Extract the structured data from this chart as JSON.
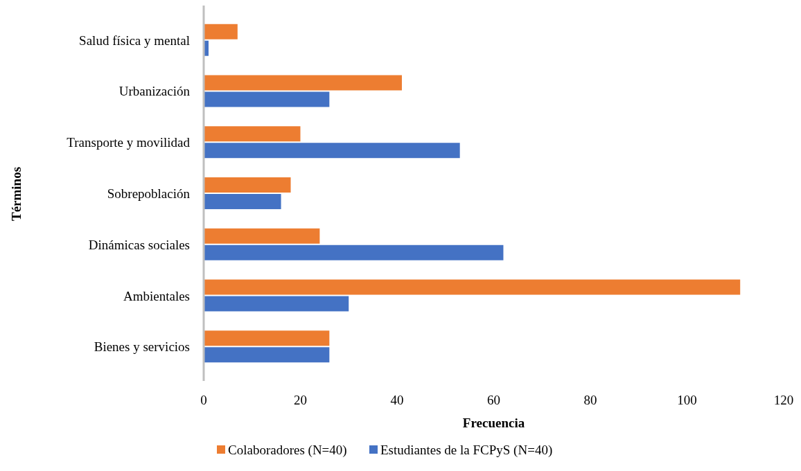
{
  "chart_data": {
    "type": "bar",
    "orientation": "horizontal",
    "xlabel": "Frecuencia",
    "ylabel": "Términos",
    "categories": [
      "Salud física y mental",
      "Urbanización",
      "Transporte y movilidad",
      "Sobrepoblación",
      "Dinámicas sociales",
      "Ambientales",
      "Bienes y servicios"
    ],
    "series": [
      {
        "name": "Colaboradores (N=40)",
        "color": "#ed7d31",
        "values": [
          7,
          41,
          20,
          18,
          24,
          111,
          26
        ]
      },
      {
        "name": "Estudiantes de la FCPyS (N=40)",
        "color": "#4472c4",
        "values": [
          1,
          26,
          53,
          16,
          62,
          30,
          26
        ]
      }
    ],
    "xlim": [
      0,
      120
    ],
    "xticks": [
      0,
      20,
      40,
      60,
      80,
      100,
      120
    ],
    "grid": false,
    "legend": "bottom"
  }
}
